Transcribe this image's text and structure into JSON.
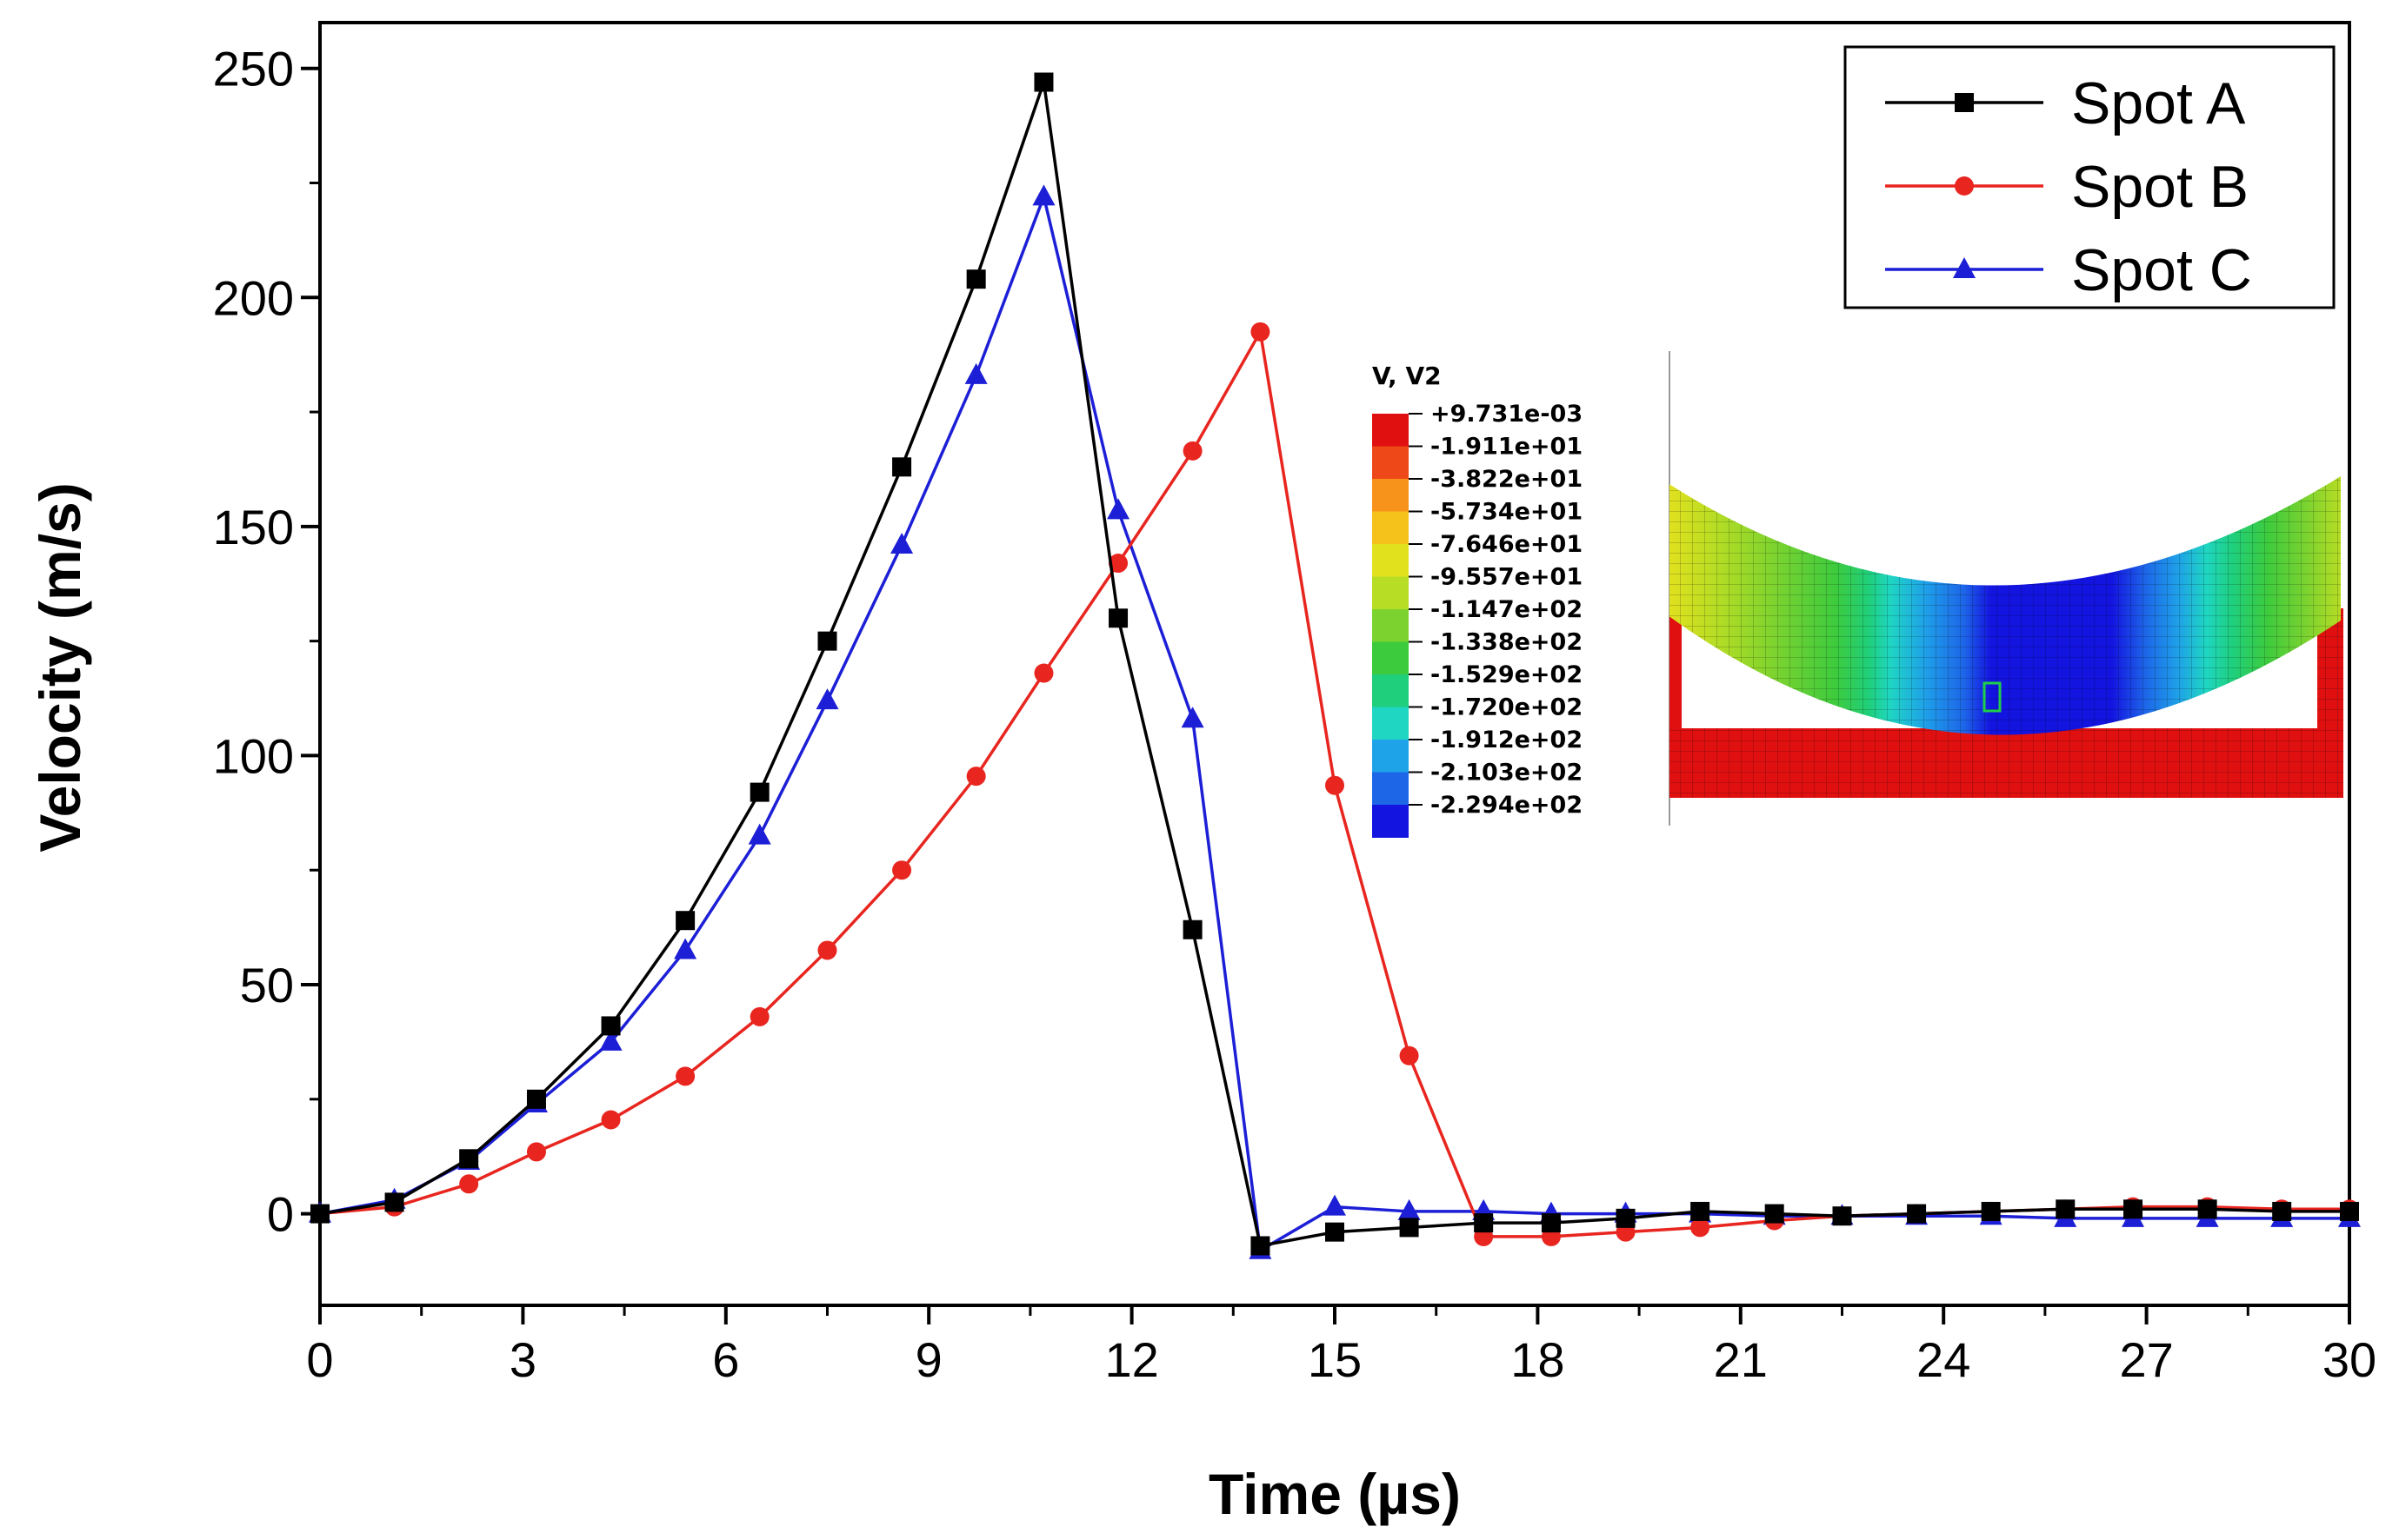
{
  "chart_data": {
    "type": "line",
    "title": "",
    "xlabel": "Time (µs)",
    "ylabel": "Velocity (m/s)",
    "xlim": [
      0,
      30
    ],
    "ylim": [
      -20,
      260
    ],
    "xticks": [
      "0",
      "3",
      "6",
      "9",
      "12",
      "15",
      "18",
      "21",
      "24",
      "27",
      "30"
    ],
    "yticks": [
      "0",
      "50",
      "100",
      "150",
      "200",
      "250"
    ],
    "grid": false,
    "legend_position": "top-right",
    "series": [
      {
        "name": "Spot A",
        "color": "#000000",
        "marker": "square",
        "x": [
          0,
          1.1,
          2.2,
          3.2,
          4.3,
          5.4,
          6.5,
          7.5,
          8.6,
          9.7,
          10.7,
          11.8,
          12.9,
          13.9,
          15.0,
          16.1,
          17.2,
          18.2,
          19.3,
          20.4,
          21.5,
          22.5,
          23.6,
          24.7,
          25.8,
          26.8,
          27.9,
          29.0,
          30.0
        ],
        "values": [
          0,
          2.5,
          12,
          25,
          41,
          64,
          92,
          125,
          163,
          204,
          247,
          130,
          62,
          -7,
          -4,
          -3,
          -2,
          -2,
          -1,
          0.5,
          0,
          -0.5,
          0,
          0.5,
          1,
          1,
          1,
          0.5,
          0.5
        ]
      },
      {
        "name": "Spot B",
        "color": "#e8251f",
        "marker": "circle",
        "x": [
          0,
          1.1,
          2.2,
          3.2,
          4.3,
          5.4,
          6.5,
          7.5,
          8.6,
          9.7,
          10.7,
          11.8,
          12.9,
          13.9,
          15.0,
          16.1,
          17.2,
          18.2,
          19.3,
          20.4,
          21.5,
          22.5,
          23.6,
          24.7,
          25.8,
          26.8,
          27.9,
          29.0,
          30.0
        ],
        "values": [
          0,
          1.5,
          6.5,
          13.5,
          20.5,
          30,
          43,
          57.5,
          75,
          95.5,
          118,
          142,
          166.5,
          192.5,
          93.5,
          34.5,
          -5,
          -5,
          -4,
          -3,
          -1.5,
          -0.5,
          0,
          0.5,
          1,
          1.5,
          1.5,
          1,
          1
        ]
      },
      {
        "name": "Spot C",
        "color": "#1c1fd6",
        "marker": "triangle",
        "x": [
          0,
          1.1,
          2.2,
          3.2,
          4.3,
          5.4,
          6.5,
          7.5,
          8.6,
          9.7,
          10.7,
          11.8,
          12.9,
          13.9,
          15.0,
          16.1,
          17.2,
          18.2,
          19.3,
          20.4,
          21.5,
          22.5,
          23.6,
          24.7,
          25.8,
          26.8,
          27.9,
          29.0,
          30.0
        ],
        "values": [
          0,
          3,
          11.5,
          24,
          37.5,
          57.5,
          82.5,
          112,
          146,
          183,
          222,
          153.5,
          108,
          -8,
          1.5,
          0.5,
          0.5,
          0,
          0,
          0,
          -0.5,
          -0.5,
          -0.5,
          -0.5,
          -1,
          -1,
          -1,
          -1,
          -1
        ]
      }
    ],
    "inset": {
      "title": "V, V2",
      "colorbar": {
        "labels": [
          "+9.731e-03",
          "-1.911e+01",
          "-3.822e+01",
          "-5.734e+01",
          "-7.646e+01",
          "-9.557e+01",
          "-1.147e+02",
          "-1.338e+02",
          "-1.529e+02",
          "-1.720e+02",
          "-1.912e+02",
          "-2.103e+02",
          "-2.294e+02"
        ],
        "colors": [
          "#e01010",
          "#ee4818",
          "#f7921b",
          "#f5c21c",
          "#e2e11e",
          "#b7dd24",
          "#7cd32f",
          "#3dcb3e",
          "#1fcf7c",
          "#1fd6c2",
          "#1fa3e8",
          "#1d66e8",
          "#1414e0"
        ]
      }
    }
  }
}
